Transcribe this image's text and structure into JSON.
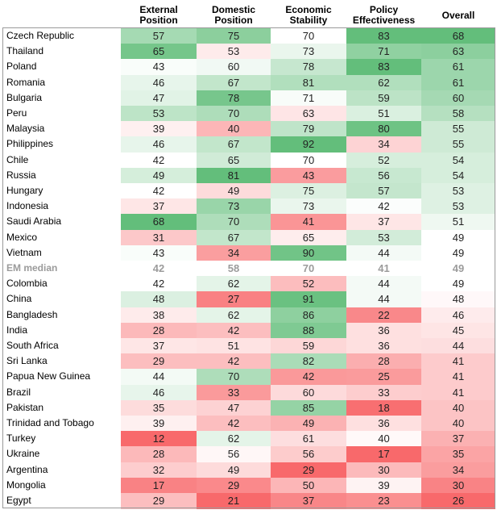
{
  "chart_data": {
    "type": "heatmap",
    "columns": [
      {
        "key": "external",
        "label_lines": [
          "External",
          "Position"
        ]
      },
      {
        "key": "domestic",
        "label_lines": [
          "Domestic",
          "Position"
        ]
      },
      {
        "key": "economic",
        "label_lines": [
          "Economic",
          "Stability"
        ]
      },
      {
        "key": "policy",
        "label_lines": [
          "Policy",
          "Effectiveness"
        ]
      },
      {
        "key": "overall",
        "label_lines": [
          "Overall"
        ]
      }
    ],
    "rows": [
      {
        "name": "Czech Republic",
        "values": [
          57,
          75,
          70,
          83,
          68
        ]
      },
      {
        "name": "Thailand",
        "values": [
          65,
          53,
          73,
          71,
          63
        ]
      },
      {
        "name": "Poland",
        "values": [
          43,
          60,
          78,
          83,
          61
        ]
      },
      {
        "name": "Romania",
        "values": [
          46,
          67,
          81,
          62,
          61
        ]
      },
      {
        "name": "Bulgaria",
        "values": [
          47,
          78,
          71,
          59,
          60
        ]
      },
      {
        "name": "Peru",
        "values": [
          53,
          70,
          63,
          51,
          58
        ]
      },
      {
        "name": "Malaysia",
        "values": [
          39,
          40,
          79,
          80,
          55
        ]
      },
      {
        "name": "Philippines",
        "values": [
          46,
          67,
          92,
          34,
          55
        ]
      },
      {
        "name": "Chile",
        "values": [
          42,
          65,
          70,
          52,
          54
        ]
      },
      {
        "name": "Russia",
        "values": [
          49,
          81,
          43,
          56,
          54
        ]
      },
      {
        "name": "Hungary",
        "values": [
          42,
          49,
          75,
          57,
          53
        ]
      },
      {
        "name": "Indonesia",
        "values": [
          37,
          73,
          73,
          42,
          53
        ]
      },
      {
        "name": "Saudi Arabia",
        "values": [
          68,
          70,
          41,
          37,
          51
        ]
      },
      {
        "name": "Mexico",
        "values": [
          31,
          67,
          65,
          53,
          49
        ]
      },
      {
        "name": "Vietnam",
        "values": [
          43,
          34,
          90,
          44,
          49
        ]
      },
      {
        "name": "EM median",
        "values": [
          42,
          58,
          70,
          41,
          49
        ],
        "median": true
      },
      {
        "name": "Colombia",
        "values": [
          42,
          62,
          52,
          44,
          49
        ]
      },
      {
        "name": "China",
        "values": [
          48,
          27,
          91,
          44,
          48
        ]
      },
      {
        "name": "Bangladesh",
        "values": [
          38,
          62,
          86,
          22,
          46
        ]
      },
      {
        "name": "India",
        "values": [
          28,
          42,
          88,
          36,
          45
        ]
      },
      {
        "name": "South Africa",
        "values": [
          37,
          51,
          59,
          36,
          44
        ]
      },
      {
        "name": "Sri Lanka",
        "values": [
          29,
          42,
          82,
          28,
          41
        ]
      },
      {
        "name": "Papua New Guinea",
        "values": [
          44,
          70,
          42,
          25,
          41
        ]
      },
      {
        "name": "Brazil",
        "values": [
          46,
          33,
          60,
          33,
          41
        ]
      },
      {
        "name": "Pakistan",
        "values": [
          35,
          47,
          85,
          18,
          40
        ]
      },
      {
        "name": "Trinidad and Tobago",
        "values": [
          39,
          42,
          49,
          36,
          40
        ]
      },
      {
        "name": "Turkey",
        "values": [
          12,
          62,
          61,
          40,
          37
        ]
      },
      {
        "name": "Ukraine",
        "values": [
          28,
          56,
          56,
          17,
          35
        ]
      },
      {
        "name": "Argentina",
        "values": [
          32,
          49,
          29,
          30,
          34
        ]
      },
      {
        "name": "Mongolia",
        "values": [
          17,
          29,
          50,
          39,
          30
        ]
      },
      {
        "name": "Egypt",
        "values": [
          29,
          21,
          37,
          23,
          26
        ]
      }
    ],
    "colors": {
      "high": "#63be7b",
      "mid": "#ffffff",
      "low": "#f8696b",
      "median_text": "#9b9b9b"
    }
  }
}
